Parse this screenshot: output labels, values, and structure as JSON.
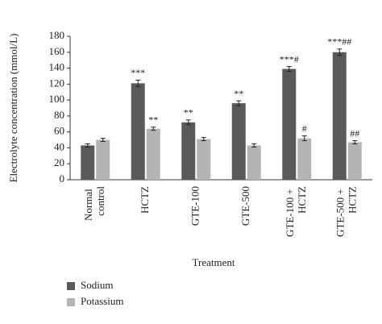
{
  "chart_data": {
    "type": "bar",
    "x_label": "Treatment",
    "y_label": "Electrolyte concentration (mmol/L)",
    "categories": [
      "Normal control",
      "HCTZ",
      "GTE-100",
      "GTE-500",
      "GTE-100 + HCTZ",
      "GTE-500 + HCTZ"
    ],
    "series": [
      {
        "name": "Sodium",
        "color": "#5a5a5a",
        "values": [
          43,
          121,
          72,
          96,
          139,
          160
        ],
        "errors": [
          2,
          4,
          3,
          3,
          3,
          4
        ],
        "annotations": [
          null,
          "***",
          "**",
          "**",
          "***#",
          "***##"
        ]
      },
      {
        "name": "Potassium",
        "color": "#b4b4b4",
        "values": [
          50,
          64,
          51,
          43,
          52,
          47
        ],
        "errors": [
          2,
          2,
          2,
          2,
          3,
          2
        ],
        "annotations": [
          null,
          "**",
          null,
          null,
          "#",
          "##"
        ]
      }
    ],
    "ylim": [
      0,
      180
    ],
    "yticks": [
      0,
      20,
      40,
      60,
      80,
      100,
      120,
      140,
      160,
      180
    ],
    "grid": false,
    "legend": "bottom-left"
  }
}
